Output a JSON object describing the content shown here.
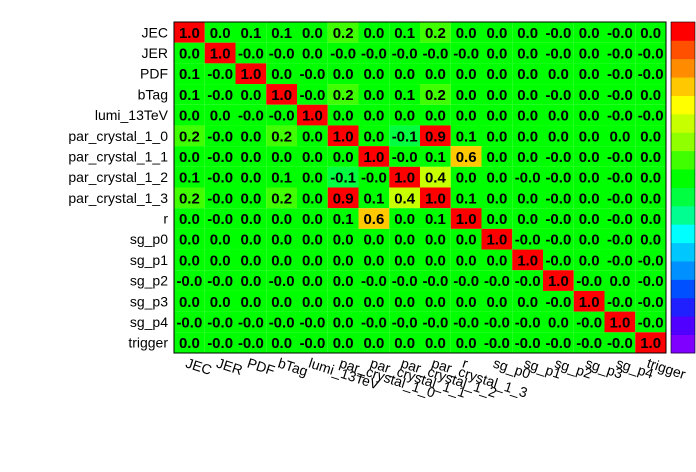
{
  "chart_data": {
    "type": "heatmap",
    "title": "",
    "xlabel": "",
    "ylabel": "",
    "labels": [
      "JEC",
      "JER",
      "PDF",
      "bTag",
      "lumi_13TeV",
      "par_crystal_1_0",
      "par_crystal_1_1",
      "par_crystal_1_2",
      "par_crystal_1_3",
      "r",
      "sg_p0",
      "sg_p1",
      "sg_p2",
      "sg_p3",
      "sg_p4",
      "trigger"
    ],
    "cell_text": [
      [
        "1.0",
        "0.0",
        "0.1",
        "0.1",
        "0.0",
        "0.2",
        "0.0",
        "0.1",
        "0.2",
        "0.0",
        "0.0",
        "0.0",
        "-0.0",
        "0.0",
        "-0.0",
        "0.0"
      ],
      [
        "0.0",
        "1.0",
        "-0.0",
        "-0.0",
        "0.0",
        "-0.0",
        "-0.0",
        "-0.0",
        "-0.0",
        "-0.0",
        "0.0",
        "0.0",
        "-0.0",
        "0.0",
        "-0.0",
        "-0.0"
      ],
      [
        "0.1",
        "-0.0",
        "1.0",
        "0.0",
        "-0.0",
        "0.0",
        "0.0",
        "0.0",
        "0.0",
        "0.0",
        "0.0",
        "0.0",
        "0.0",
        "0.0",
        "-0.0",
        "-0.0"
      ],
      [
        "0.1",
        "-0.0",
        "0.0",
        "1.0",
        "-0.0",
        "0.2",
        "0.0",
        "0.1",
        "0.2",
        "0.0",
        "0.0",
        "0.0",
        "-0.0",
        "0.0",
        "-0.0",
        "0.0"
      ],
      [
        "0.0",
        "0.0",
        "-0.0",
        "-0.0",
        "1.0",
        "0.0",
        "0.0",
        "0.0",
        "0.0",
        "0.0",
        "0.0",
        "0.0",
        "0.0",
        "0.0",
        "-0.0",
        "-0.0"
      ],
      [
        "0.2",
        "-0.0",
        "0.0",
        "0.2",
        "0.0",
        "1.0",
        "0.0",
        "-0.1",
        "0.9",
        "0.1",
        "0.0",
        "0.0",
        "0.0",
        "0.0",
        "0.0",
        "0.0"
      ],
      [
        "0.0",
        "-0.0",
        "0.0",
        "0.0",
        "0.0",
        "0.0",
        "1.0",
        "-0.0",
        "0.1",
        "0.6",
        "0.0",
        "0.0",
        "-0.0",
        "0.0",
        "-0.0",
        "0.0"
      ],
      [
        "0.1",
        "-0.0",
        "0.0",
        "0.1",
        "0.0",
        "-0.1",
        "-0.0",
        "1.0",
        "0.4",
        "0.0",
        "0.0",
        "-0.0",
        "-0.0",
        "0.0",
        "-0.0",
        "0.0"
      ],
      [
        "0.2",
        "-0.0",
        "0.0",
        "0.2",
        "0.0",
        "0.9",
        "0.1",
        "0.4",
        "1.0",
        "0.1",
        "0.0",
        "0.0",
        "-0.0",
        "0.0",
        "-0.0",
        "0.0"
      ],
      [
        "0.0",
        "-0.0",
        "0.0",
        "0.0",
        "0.0",
        "0.1",
        "0.6",
        "0.0",
        "0.1",
        "1.0",
        "0.0",
        "0.0",
        "-0.0",
        "0.0",
        "-0.0",
        "0.0"
      ],
      [
        "0.0",
        "0.0",
        "0.0",
        "0.0",
        "0.0",
        "0.0",
        "0.0",
        "0.0",
        "0.0",
        "0.0",
        "1.0",
        "-0.0",
        "-0.0",
        "0.0",
        "-0.0",
        "0.0"
      ],
      [
        "0.0",
        "0.0",
        "0.0",
        "0.0",
        "0.0",
        "0.0",
        "0.0",
        "0.0",
        "0.0",
        "0.0",
        "0.0",
        "1.0",
        "-0.0",
        "0.0",
        "-0.0",
        "-0.0"
      ],
      [
        "-0.0",
        "-0.0",
        "0.0",
        "-0.0",
        "0.0",
        "0.0",
        "-0.0",
        "-0.0",
        "-0.0",
        "-0.0",
        "-0.0",
        "-0.0",
        "1.0",
        "-0.0",
        "0.0",
        "-0.0"
      ],
      [
        "0.0",
        "0.0",
        "0.0",
        "0.0",
        "0.0",
        "0.0",
        "0.0",
        "0.0",
        "0.0",
        "0.0",
        "0.0",
        "0.0",
        "-0.0",
        "1.0",
        "-0.0",
        "-0.0"
      ],
      [
        "-0.0",
        "-0.0",
        "-0.0",
        "-0.0",
        "-0.0",
        "0.0",
        "-0.0",
        "-0.0",
        "-0.0",
        "-0.0",
        "-0.0",
        "-0.0",
        "0.0",
        "-0.0",
        "1.0",
        "-0.0"
      ],
      [
        "0.0",
        "-0.0",
        "-0.0",
        "0.0",
        "-0.0",
        "0.0",
        "0.0",
        "0.0",
        "0.0",
        "0.0",
        "-0.0",
        "-0.0",
        "-0.0",
        "-0.0",
        "-0.0",
        "1.0"
      ]
    ],
    "zlim": [
      -1,
      1
    ],
    "colors": {
      "palette": [
        "#7f00ff",
        "#5000ff",
        "#2020ff",
        "#0050ff",
        "#0090ff",
        "#00c8ff",
        "#00ffff",
        "#00ff90",
        "#00ff40",
        "#00ff00",
        "#40ff00",
        "#90ff00",
        "#c8ff00",
        "#ffff00",
        "#ffc800",
        "#ff8c00",
        "#ff5000",
        "#ff0000"
      ],
      "cell_border": "#000000"
    },
    "grid": true,
    "legend": "color-bar-right"
  }
}
